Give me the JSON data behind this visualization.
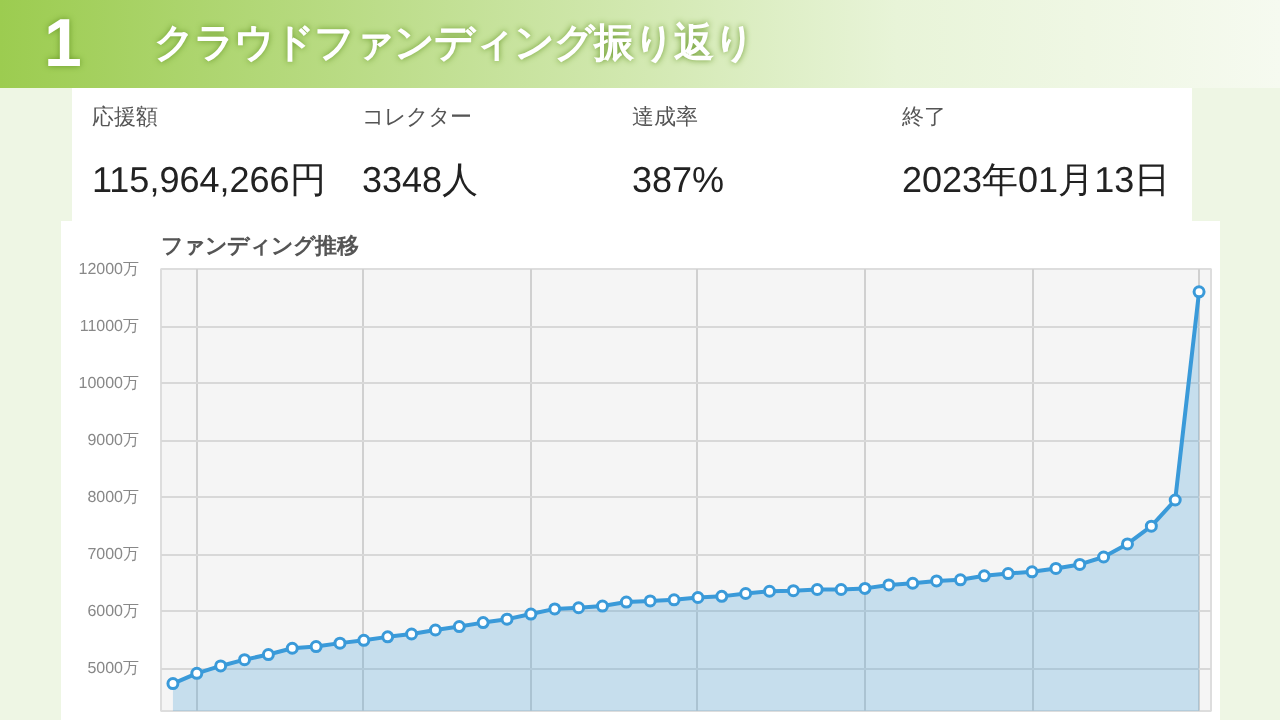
{
  "chart_data": [
    {
      "type": "other",
      "title": "クラウドファンディング振り返り",
      "subtitle": "1",
      "annotations": [
        "応援額",
        "115,964,266円",
        "コレクター",
        "3348人",
        "達成率",
        "387%",
        "終了",
        "2023年01月13日"
      ]
    },
    {
      "type": "area",
      "title": "ファンディング推移",
      "marker": "circle",
      "grid": true,
      "tick_labels": "y",
      "categories": [
        null,
        null,
        null,
        null,
        null,
        null,
        null,
        null,
        null,
        null,
        null,
        null,
        null,
        null,
        null,
        null,
        null,
        null,
        null,
        null,
        null,
        null,
        null,
        null,
        null,
        null,
        null,
        null,
        null,
        null,
        null,
        null,
        null,
        null,
        null,
        null,
        null,
        null,
        null,
        null,
        null,
        null,
        null,
        null
      ],
      "series": [
        {
          "color": "#3a9ad9",
          "values": [
            4730,
            4910,
            5040,
            5150,
            5240,
            5350,
            5380,
            5440,
            5490,
            5550,
            5600,
            5670,
            5730,
            5800,
            5860,
            5950,
            6040,
            6060,
            6090,
            6160,
            6180,
            6200,
            6240,
            6260,
            6310,
            6350,
            6360,
            6380,
            6380,
            6400,
            6460,
            6490,
            6530,
            6550,
            6620,
            6660,
            6690,
            6750,
            6820,
            6950,
            7180,
            7490,
            7950,
            11600
          ]
        }
      ],
      "ylim": [
        4250,
        12000
      ],
      "yticks": [
        {
          "value": 5000,
          "label": "5000万"
        },
        {
          "value": 6000,
          "label": "6000万"
        },
        {
          "value": 7000,
          "label": "7000万"
        },
        {
          "value": 8000,
          "label": "8000万"
        },
        {
          "value": 9000,
          "label": "9000万"
        },
        {
          "value": 10000,
          "label": "10000万"
        },
        {
          "value": 11000,
          "label": "11000万"
        },
        {
          "value": 12000,
          "label": "12000万"
        }
      ]
    }
  ]
}
